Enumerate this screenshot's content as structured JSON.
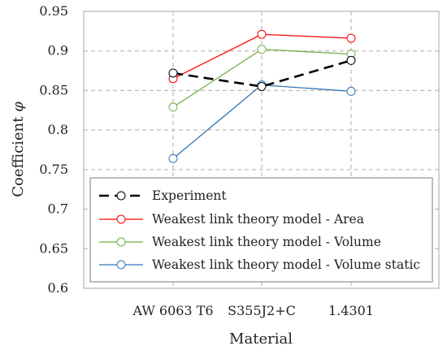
{
  "chart_data": {
    "type": "line",
    "categories": [
      "AW 6063 T6",
      "S355J2+C",
      "1.4301"
    ],
    "xlabel": "Material",
    "ylabel_text": "Coefficient ",
    "ylabel_symbol": "φ",
    "ylim": [
      0.6,
      0.95
    ],
    "yticks": [
      "0.6",
      "0.65",
      "0.7",
      "0.75",
      "0.8",
      "0.85",
      "0.9",
      "0.95"
    ],
    "grid": true,
    "legend_position": "bottom",
    "series": [
      {
        "name": "Experiment",
        "values": [
          0.872,
          0.855,
          0.888
        ],
        "color": "#000000",
        "dashed": true
      },
      {
        "name": "Weakest link theory model - Area",
        "values": [
          0.865,
          0.921,
          0.916
        ],
        "color": "#ff0000",
        "dashed": false
      },
      {
        "name": "Weakest link theory model - Volume",
        "values": [
          0.829,
          0.902,
          0.896
        ],
        "color": "#70ad47",
        "dashed": false
      },
      {
        "name": "Weakest link theory model - Volume static",
        "values": [
          0.764,
          0.857,
          0.849
        ],
        "color": "#2e75b6",
        "dashed": false
      }
    ]
  }
}
